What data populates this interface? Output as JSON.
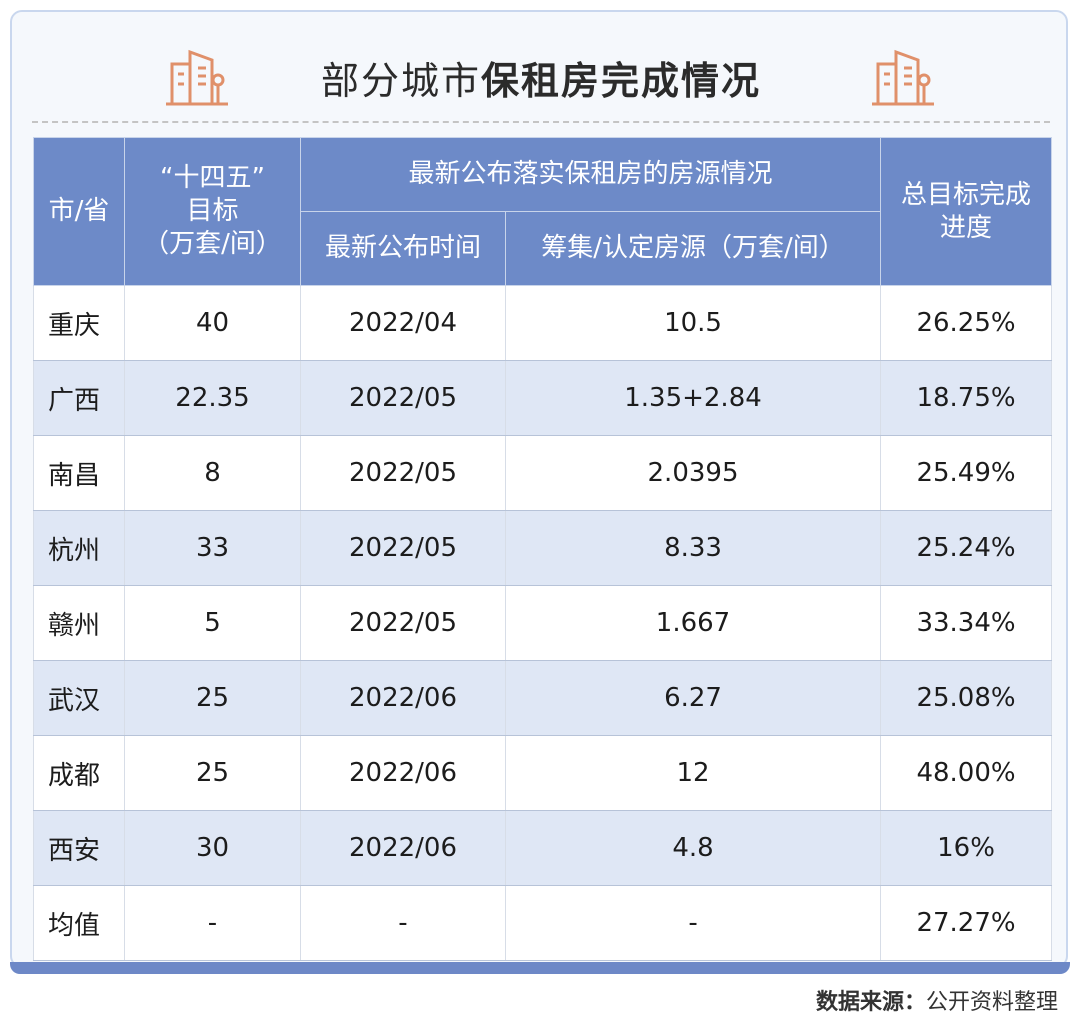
{
  "title": {
    "prefix": "部分城市",
    "bold": "保租房完成情况"
  },
  "table": {
    "headers": {
      "city": "市/省",
      "target_line1": "“十四五”",
      "target_line2": "目标",
      "target_line3": "（万套/间）",
      "latest_group": "最新公布落实保租房的房源情况",
      "latest_time": "最新公布时间",
      "latest_source": "筹集/认定房源（万套/间）",
      "progress_line1": "总目标完成",
      "progress_line2": "进度"
    },
    "rows": [
      {
        "city": "重庆",
        "target": "40",
        "time": "2022/04",
        "source": "10.5",
        "progress": "26.25%"
      },
      {
        "city": "广西",
        "target": "22.35",
        "time": "2022/05",
        "source": "1.35+2.84",
        "progress": "18.75%"
      },
      {
        "city": "南昌",
        "target": "8",
        "time": "2022/05",
        "source": "2.0395",
        "progress": "25.49%"
      },
      {
        "city": "杭州",
        "target": "33",
        "time": "2022/05",
        "source": "8.33",
        "progress": "25.24%"
      },
      {
        "city": "赣州",
        "target": "5",
        "time": "2022/05",
        "source": "1.667",
        "progress": "33.34%"
      },
      {
        "city": "武汉",
        "target": "25",
        "time": "2022/06",
        "source": "6.27",
        "progress": "25.08%"
      },
      {
        "city": "成都",
        "target": "25",
        "time": "2022/06",
        "source": "12",
        "progress": "48.00%"
      },
      {
        "city": "西安",
        "target": "30",
        "time": "2022/06",
        "source": "4.8",
        "progress": "16%"
      },
      {
        "city": "均值",
        "target": "-",
        "time": "-",
        "source": "-",
        "progress": "27.27%"
      }
    ]
  },
  "source_note": {
    "label": "数据来源：",
    "text": "公开资料整理"
  },
  "colors": {
    "header_bg": "#6d8ac8",
    "stripe_bg": "#dfe7f5",
    "icon_accent": "#e0906a"
  },
  "icons": {
    "title_left": "building-icon",
    "title_right": "building-icon"
  }
}
